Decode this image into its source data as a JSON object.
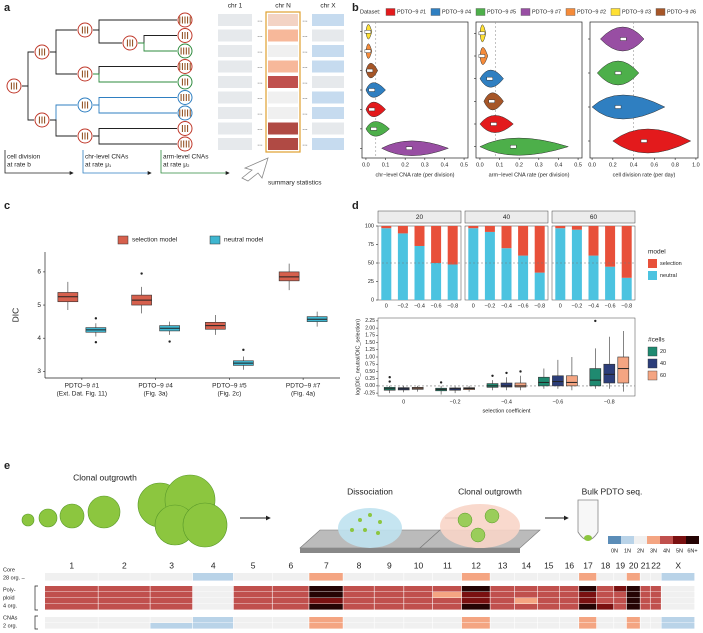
{
  "panel_labels": [
    "a",
    "b",
    "c",
    "d",
    "e"
  ],
  "panel_a": {
    "columns": [
      "chr 1",
      "chr N",
      "chr X"
    ],
    "ellipsis": "...",
    "legend": [
      [
        "cell division",
        "at rate b"
      ],
      [
        "chr-level CNAs",
        "at rate μ₁"
      ],
      [
        "arm-level CNAs",
        "at rate μ₂"
      ]
    ],
    "summary": "summary statistics"
  },
  "panel_b": {
    "legend_title": "Dataset:",
    "legend": [
      {
        "name": "PDTO−9 #1",
        "color": "#e31a1c"
      },
      {
        "name": "PDTO−9 #4",
        "color": "#2f7fc1"
      },
      {
        "name": "PDTO−9 #5",
        "color": "#4daf4a"
      },
      {
        "name": "PDTO−9 #7",
        "color": "#984ea3"
      },
      {
        "name": "PDTO−9 #2",
        "color": "#f58b3a"
      },
      {
        "name": "PDTO−9 #3",
        "color": "#ffe033"
      },
      {
        "name": "PDTO−9 #6",
        "color": "#a65628"
      }
    ],
    "charts": [
      {
        "type": "violin",
        "x_label": "chr−level CNA rate (per division)",
        "xlim": [
          -0.02,
          0.52
        ],
        "xticks": [
          {
            "value": 0,
            "label": "0.0"
          },
          0.1,
          0.2,
          0.3,
          0.4,
          0.5
        ],
        "ref_line": 0.05,
        "violins": [
          {
            "color": "#ffe033",
            "median": 0.01,
            "range": [
              0,
              0.03
            ]
          },
          {
            "color": "#f58b3a",
            "median": 0.01,
            "range": [
              0,
              0.03
            ]
          },
          {
            "color": "#a65628",
            "median": 0.02,
            "range": [
              0,
              0.06
            ]
          },
          {
            "color": "#2f7fc1",
            "median": 0.03,
            "range": [
              0,
              0.1
            ]
          },
          {
            "color": "#e31a1c",
            "median": 0.03,
            "range": [
              0,
              0.1
            ]
          },
          {
            "color": "#4daf4a",
            "median": 0.04,
            "range": [
              0,
              0.12
            ]
          },
          {
            "color": "#984ea3",
            "median": 0.22,
            "range": [
              0.08,
              0.42
            ]
          }
        ]
      },
      {
        "type": "violin",
        "x_label": "arm−level CNA rate (per division)",
        "xlim": [
          -0.02,
          0.52
        ],
        "xticks": [
          {
            "value": 0,
            "label": "0.0"
          },
          0.1,
          0.2,
          0.3,
          0.4,
          0.5
        ],
        "ref_line": 0.08,
        "violins": [
          {
            "color": "#ffe033",
            "median": 0.01,
            "range": [
              0,
              0.03
            ]
          },
          {
            "color": "#f58b3a",
            "median": 0.01,
            "range": [
              0,
              0.04
            ]
          },
          {
            "color": "#2f7fc1",
            "median": 0.05,
            "range": [
              0,
              0.12
            ]
          },
          {
            "color": "#a65628",
            "median": 0.06,
            "range": [
              0.02,
              0.12
            ]
          },
          {
            "color": "#e31a1c",
            "median": 0.07,
            "range": [
              0,
              0.17
            ]
          },
          {
            "color": "#4daf4a",
            "median": 0.17,
            "range": [
              0,
              0.45
            ]
          }
        ]
      },
      {
        "type": "violin",
        "x_label": "cell division rate (per day)",
        "xlim": [
          -0.02,
          1.02
        ],
        "xticks": [
          {
            "value": 0,
            "label": "0.0"
          },
          0.2,
          0.4,
          0.6,
          0.8,
          {
            "value": 1,
            "label": "1.0"
          }
        ],
        "ref_line": 0.4,
        "violins": [
          {
            "color": "#984ea3",
            "median": 0.3,
            "range": [
              0.08,
              0.5
            ]
          },
          {
            "color": "#4daf4a",
            "median": 0.25,
            "range": [
              0.05,
              0.45
            ]
          },
          {
            "color": "#2f7fc1",
            "median": 0.25,
            "range": [
              0,
              0.7
            ]
          },
          {
            "color": "#e31a1c",
            "median": 0.5,
            "range": [
              0.2,
              0.95
            ]
          }
        ]
      }
    ]
  },
  "panel_c": {
    "chart_data": {
      "type": "box",
      "y_label": "DIC",
      "ylim": [
        2.8,
        6.6
      ],
      "yticks": [
        3,
        4,
        5,
        6
      ],
      "categories": [
        [
          "PDTO−9 #1",
          "(Ext. Dat. Fig. 11)"
        ],
        [
          "PDTO−9 #4",
          "(Fig. 3a)"
        ],
        [
          "PDTO−9 #5",
          "(Fig. 2c)"
        ],
        [
          "PDTO−9 #7",
          "(Fig. 4a)"
        ]
      ],
      "series": [
        {
          "name": "selection model",
          "color": "#d6604d",
          "boxes": [
            {
              "q1": 5.1,
              "median": 5.25,
              "q3": 5.38,
              "whisker_low": 4.85,
              "whisker_high": 5.7
            },
            {
              "q1": 5.0,
              "median": 5.15,
              "q3": 5.3,
              "whisker_low": 4.75,
              "whisker_high": 5.55,
              "outliers": [
                5.95
              ]
            },
            {
              "q1": 4.27,
              "median": 4.38,
              "q3": 4.48,
              "whisker_low": 4.1,
              "whisker_high": 4.7
            },
            {
              "q1": 5.73,
              "median": 5.85,
              "q3": 6.0,
              "whisker_low": 5.45,
              "whisker_high": 6.25
            }
          ]
        },
        {
          "name": "neutral model",
          "color": "#3fb6d0",
          "boxes": [
            {
              "q1": 4.18,
              "median": 4.25,
              "q3": 4.32,
              "whisker_low": 4.05,
              "whisker_high": 4.45,
              "outliers": [
                3.88,
                4.6
              ]
            },
            {
              "q1": 4.22,
              "median": 4.3,
              "q3": 4.38,
              "whisker_low": 4.1,
              "whisker_high": 4.5,
              "outliers": [
                3.9
              ]
            },
            {
              "q1": 3.18,
              "median": 3.25,
              "q3": 3.32,
              "whisker_low": 3.05,
              "whisker_high": 3.45,
              "outliers": [
                3.65
              ]
            },
            {
              "q1": 4.5,
              "median": 4.57,
              "q3": 4.65,
              "whisker_low": 4.35,
              "whisker_high": 4.8
            }
          ]
        }
      ]
    }
  },
  "panel_d": {
    "top": {
      "type": "bar",
      "stacked": true,
      "facets": [
        "20",
        "40",
        "60"
      ],
      "categories": [
        "0",
        "−0.2",
        "−0.4",
        "−0.6",
        "−0.8"
      ],
      "ylim": [
        0,
        100
      ],
      "yticks": [
        0,
        25,
        50,
        75,
        100
      ],
      "ref_line": 50,
      "legend_title": "model",
      "series": [
        {
          "name": "selection",
          "color": "#e8503a",
          "values": [
            [
              3,
              10,
              27,
              50,
              52
            ],
            [
              3,
              8,
              30,
              40,
              63
            ],
            [
              3,
              5,
              40,
              55,
              70
            ]
          ]
        },
        {
          "name": "neutral",
          "color": "#4cc3e0",
          "values": [
            [
              97,
              90,
              73,
              50,
              48
            ],
            [
              97,
              92,
              70,
              60,
              37
            ],
            [
              97,
              95,
              60,
              45,
              30
            ]
          ]
        }
      ]
    },
    "bottom": {
      "type": "box",
      "x_label": "selection coefficient",
      "y_label": "log(DIC_neutral/DIC_selection)",
      "legend_title": "#cells",
      "categories": [
        "0",
        "−0.2",
        "−0.4",
        "−0.6",
        "−0.8"
      ],
      "ylim": [
        -0.35,
        2.35
      ],
      "yticks": [
        -0.25,
        {
          "value": 0,
          "label": "0.00"
        },
        0.25,
        {
          "value": 0.5,
          "label": "0.50"
        },
        0.75,
        {
          "value": 1,
          "label": "1.00"
        },
        1.25,
        {
          "value": 1.5,
          "label": "1.50"
        },
        1.75,
        {
          "value": 2,
          "label": "2.00"
        },
        2.25
      ],
      "ref_line": 0,
      "series": [
        {
          "name": "20",
          "color": "#1f8a70",
          "boxes": [
            {
              "q1": -0.15,
              "median": -0.1,
              "q3": -0.05,
              "whisker_low": -0.25,
              "whisker_high": 0.0,
              "outliers": [
                0.3,
                0.15
              ]
            },
            {
              "q1": -0.17,
              "median": -0.12,
              "q3": -0.08,
              "whisker_low": -0.3,
              "whisker_high": 0.0,
              "outliers": [
                0.12
              ]
            },
            {
              "q1": -0.05,
              "median": 0.0,
              "q3": 0.08,
              "whisker_low": -0.15,
              "whisker_high": 0.2,
              "outliers": [
                0.35
              ]
            },
            {
              "q1": 0.0,
              "median": 0.12,
              "q3": 0.3,
              "whisker_low": -0.1,
              "whisker_high": 0.6
            },
            {
              "q1": 0.0,
              "median": 0.2,
              "q3": 0.6,
              "whisker_low": -0.1,
              "whisker_high": 1.3,
              "outliers": [
                2.25
              ]
            }
          ]
        },
        {
          "name": "40",
          "color": "#2c3e7a",
          "boxes": [
            {
              "q1": -0.14,
              "median": -0.1,
              "q3": -0.06,
              "whisker_low": -0.22,
              "whisker_high": 0.0
            },
            {
              "q1": -0.15,
              "median": -0.1,
              "q3": -0.07,
              "whisker_low": -0.25,
              "whisker_high": -0.02
            },
            {
              "q1": -0.04,
              "median": 0.0,
              "q3": 0.1,
              "whisker_low": -0.15,
              "whisker_high": 0.3,
              "outliers": [
                0.45
              ]
            },
            {
              "q1": 0.0,
              "median": 0.15,
              "q3": 0.35,
              "whisker_low": -0.1,
              "whisker_high": 0.9
            },
            {
              "q1": 0.1,
              "median": 0.4,
              "q3": 0.75,
              "whisker_low": -0.1,
              "whisker_high": 1.7
            }
          ]
        },
        {
          "name": "60",
          "color": "#f4a582",
          "boxes": [
            {
              "q1": -0.12,
              "median": -0.08,
              "q3": -0.05,
              "whisker_low": -0.2,
              "whisker_high": 0.0
            },
            {
              "q1": -0.13,
              "median": -0.09,
              "q3": -0.06,
              "whisker_low": -0.2,
              "whisker_high": 0.0
            },
            {
              "q1": -0.04,
              "median": 0.0,
              "q3": 0.1,
              "whisker_low": -0.15,
              "whisker_high": 0.35,
              "outliers": [
                0.5
              ]
            },
            {
              "q1": 0.0,
              "median": 0.12,
              "q3": 0.35,
              "whisker_low": -0.15,
              "whisker_high": 1.0
            },
            {
              "q1": 0.1,
              "median": 0.6,
              "q3": 1.0,
              "whisker_low": -0.2,
              "whisker_high": 1.9
            }
          ]
        }
      ]
    }
  },
  "panel_e": {
    "steps": [
      "Clonal outgrowth",
      "Dissociation",
      "Clonal outgrowth",
      "Bulk PDTO seq."
    ],
    "heatmap": {
      "legend": {
        "labels": [
          "0N",
          "1N",
          "2N",
          "3N",
          "4N",
          "5N",
          "6N+"
        ],
        "colors": [
          "#5b8db8",
          "#b9d3e8",
          "#f0f0f0",
          "#f4a582",
          "#c0504d",
          "#7a1010",
          "#250404"
        ]
      },
      "chromosomes": [
        "1",
        "2",
        "3",
        "4",
        "5",
        "6",
        "7",
        "8",
        "9",
        "10",
        "11",
        "12",
        "13",
        "14",
        "15",
        "16",
        "17",
        "18",
        "19",
        "20",
        "21",
        "22",
        "X"
      ],
      "groups": [
        {
          "label": [
            "Core",
            "28 org. –"
          ],
          "rows": [
            [
              2,
              2,
              2,
              1,
              2,
              2,
              3,
              2,
              2,
              2,
              2,
              3,
              2,
              2,
              2,
              2,
              3,
              2,
              2,
              3,
              2,
              2,
              1
            ]
          ]
        },
        {
          "label": [
            "Poly-",
            "ploid",
            "4 org."
          ],
          "rows": [
            [
              4,
              4,
              4,
              2,
              4,
              4,
              6,
              4,
              4,
              4,
              4,
              6,
              4,
              4,
              4,
              4,
              6,
              4,
              5,
              6,
              4,
              4,
              2
            ],
            [
              4,
              4,
              4,
              2,
              4,
              4,
              6,
              4,
              4,
              4,
              3,
              5,
              4,
              4,
              4,
              4,
              5,
              4,
              4,
              6,
              4,
              4,
              2
            ],
            [
              4,
              4,
              4,
              2,
              4,
              4,
              5,
              4,
              4,
              4,
              4,
              5,
              4,
              3,
              4,
              4,
              5,
              4,
              4,
              6,
              4,
              4,
              2
            ],
            [
              4,
              4,
              4,
              2,
              4,
              4,
              6,
              4,
              4,
              4,
              4,
              6,
              4,
              4,
              4,
              4,
              6,
              5,
              4,
              6,
              4,
              4,
              2
            ]
          ]
        },
        {
          "label": [
            "CNAs",
            "2 org."
          ],
          "rows": [
            [
              2,
              2,
              2,
              1,
              2,
              2,
              3,
              2,
              2,
              2,
              2,
              3,
              2,
              2,
              2,
              2,
              3,
              2,
              2,
              3,
              2,
              2,
              1
            ],
            [
              2,
              2,
              1,
              1,
              2,
              2,
              3,
              2,
              2,
              2,
              2,
              3,
              2,
              2,
              2,
              2,
              3,
              2,
              2,
              3,
              2,
              2,
              1
            ]
          ]
        }
      ]
    }
  }
}
